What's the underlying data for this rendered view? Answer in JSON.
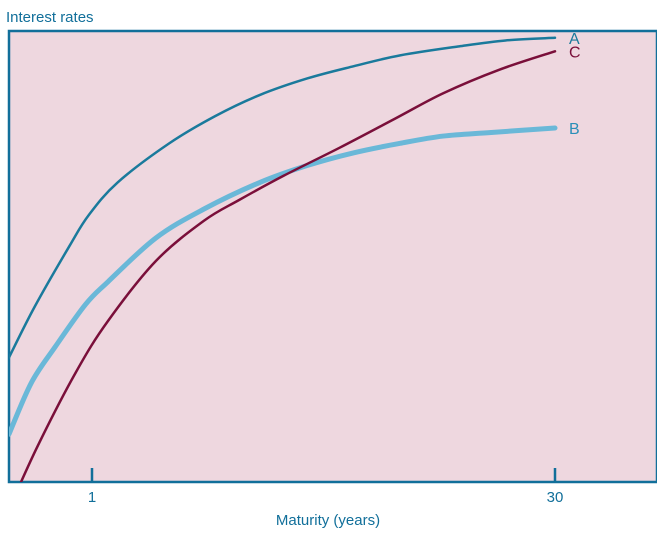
{
  "chart_data": {
    "type": "line",
    "title": "",
    "ylabel": "Interest rates",
    "xlabel": "Maturity (years)",
    "x_ticks": [
      {
        "value": 1,
        "label": "1"
      },
      {
        "value": 30,
        "label": "30"
      }
    ],
    "grid": false,
    "legend": "inline labels at right end of each curve",
    "series": [
      {
        "name": "A",
        "color": "#1a7a9c",
        "stroke": "thin",
        "points": [
          [
            -4.2,
            27.6
          ],
          [
            -2.6,
            38.8
          ],
          [
            -0.4,
            52.4
          ],
          [
            0.8,
            59.2
          ],
          [
            2.6,
            66.4
          ],
          [
            5.8,
            75.0
          ],
          [
            8.7,
            81.1
          ],
          [
            11.5,
            85.8
          ],
          [
            14.5,
            89.5
          ],
          [
            17.4,
            92.2
          ],
          [
            20.3,
            94.6
          ],
          [
            24.0,
            96.6
          ],
          [
            26.9,
            97.9
          ],
          [
            30,
            98.5
          ]
        ]
      },
      {
        "name": "B",
        "color": "#6ab8d8",
        "stroke": "thick",
        "points": [
          [
            -4.2,
            10.6
          ],
          [
            -2.8,
            22.0
          ],
          [
            -1.3,
            30.0
          ],
          [
            0.6,
            39.4
          ],
          [
            2.0,
            44.4
          ],
          [
            5.0,
            54.1
          ],
          [
            8.0,
            60.5
          ],
          [
            11.5,
            66.4
          ],
          [
            14.5,
            70.2
          ],
          [
            17.4,
            73.0
          ],
          [
            20.3,
            75.1
          ],
          [
            23.0,
            76.7
          ],
          [
            26.0,
            77.5
          ],
          [
            30,
            78.5
          ]
        ]
      },
      {
        "name": "C",
        "color": "#7a0f3a",
        "stroke": "thin",
        "points": [
          [
            -4.2,
            -6.0
          ],
          [
            -2.4,
            8.0
          ],
          [
            0.0,
            24.4
          ],
          [
            2.0,
            35.7
          ],
          [
            5.0,
            49.0
          ],
          [
            8.0,
            57.9
          ],
          [
            10.2,
            62.5
          ],
          [
            13.0,
            67.9
          ],
          [
            16.5,
            74.1
          ],
          [
            20.0,
            80.6
          ],
          [
            23.0,
            86.2
          ],
          [
            26.5,
            91.4
          ],
          [
            30,
            95.5
          ]
        ]
      }
    ]
  },
  "colors": {
    "plot_background": "#eed7df",
    "axis": "#116f9a",
    "label_text": "#116f9a"
  }
}
